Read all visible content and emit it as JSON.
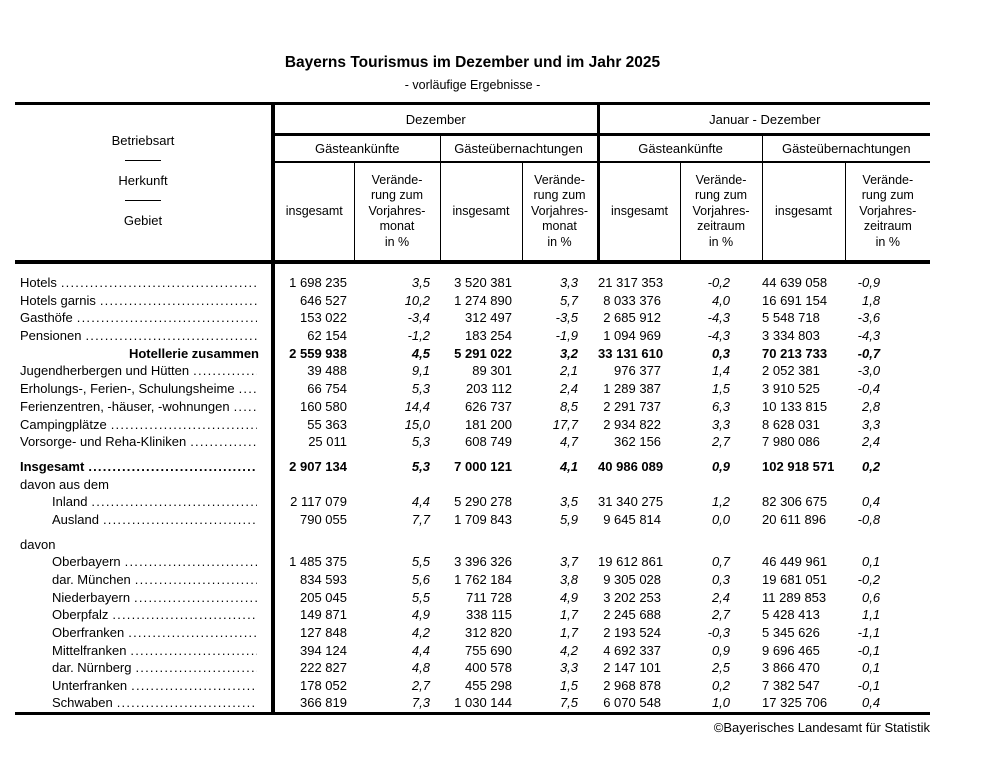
{
  "page": {
    "title": "Bayerns Tourismus im Dezember und im Jahr 2025",
    "subtitle": "- vorläufige Ergebnisse -",
    "footer_credit": "©Bayerisches Landesamt für Statistik"
  },
  "table": {
    "stub": {
      "lines": [
        "Betriebsart",
        "Herkunft",
        "Gebiet"
      ]
    },
    "groups": [
      {
        "label": "Dezember",
        "measures": [
          "Gästeankünfte",
          "Gästeübernachtungen"
        ],
        "total_label": "insgesamt",
        "change_label": "Verände-\nrung zum\nVorjahres-\nmonat\nin %"
      },
      {
        "label": "Januar - Dezember",
        "measures": [
          "Gästeankünfte",
          "Gästeübernachtungen"
        ],
        "total_label": "insgesamt",
        "change_label": "Verände-\nrung zum\nVorjahres-\nzeitraum\nin %"
      }
    ],
    "rows": [
      {
        "label": "Hotels",
        "values": [
          "1 698 235",
          "3,5",
          "3 520 381",
          "3,3",
          "21 317 353",
          "-0,2",
          "44 639 058",
          "-0,9"
        ]
      },
      {
        "label": "Hotels garnis",
        "values": [
          "646 527",
          "10,2",
          "1 274 890",
          "5,7",
          "8 033 376",
          "4,0",
          "16 691 154",
          "1,8"
        ]
      },
      {
        "label": "Gasthöfe",
        "values": [
          "153 022",
          "-3,4",
          "312 497",
          "-3,5",
          "2 685 912",
          "-4,3",
          "5 548 718",
          "-3,6"
        ]
      },
      {
        "label": "Pensionen",
        "values": [
          "62 154",
          "-1,2",
          "183 254",
          "-1,9",
          "1 094 969",
          "-4,3",
          "3 334 803",
          "-4,3"
        ]
      },
      {
        "label": "Hotellerie zusammen",
        "bold": true,
        "align_right": true,
        "values": [
          "2 559 938",
          "4,5",
          "5 291 022",
          "3,2",
          "33 131 610",
          "0,3",
          "70 213 733",
          "-0,7"
        ]
      },
      {
        "label": "Jugendherbergen und Hütten",
        "values": [
          "39 488",
          "9,1",
          "89 301",
          "2,1",
          "976 377",
          "1,4",
          "2 052 381",
          "-3,0"
        ]
      },
      {
        "label": "Erholungs-, Ferien-, Schulungsheime",
        "values": [
          "66 754",
          "5,3",
          "203 112",
          "2,4",
          "1 289 387",
          "1,5",
          "3 910 525",
          "-0,4"
        ]
      },
      {
        "label": "Ferienzentren, -häuser, -wohnungen",
        "values": [
          "160 580",
          "14,4",
          "626 737",
          "8,5",
          "2 291 737",
          "6,3",
          "10 133 815",
          "2,8"
        ]
      },
      {
        "label": "Campingplätze",
        "values": [
          "55 363",
          "15,0",
          "181 200",
          "17,7",
          "2 934 822",
          "3,3",
          "8 628 031",
          "3,3"
        ]
      },
      {
        "label": "Vorsorge- und Reha-Kliniken",
        "values": [
          "25 011",
          "5,3",
          "608 749",
          "4,7",
          "362 156",
          "2,7",
          "7 980 086",
          "2,4"
        ]
      },
      {
        "label": "Insgesamt",
        "bold": true,
        "section_start": true,
        "values": [
          "2 907 134",
          "5,3",
          "7 000 121",
          "4,1",
          "40 986 089",
          "0,9",
          "102 918 571",
          "0,2"
        ]
      },
      {
        "label": "davon aus dem"
      },
      {
        "label": "Inland",
        "indent": true,
        "values": [
          "2 117 079",
          "4,4",
          "5 290 278",
          "3,5",
          "31 340 275",
          "1,2",
          "82 306 675",
          "0,4"
        ]
      },
      {
        "label": "Ausland",
        "indent": true,
        "values": [
          "790 055",
          "7,7",
          "1 709 843",
          "5,9",
          "9 645 814",
          "0,0",
          "20 611 896",
          "-0,8"
        ]
      },
      {
        "label": "davon",
        "section_start": true
      },
      {
        "label": "Oberbayern",
        "indent": true,
        "values": [
          "1 485 375",
          "5,5",
          "3 396 326",
          "3,7",
          "19 612 861",
          "0,7",
          "46 449 961",
          "0,1"
        ]
      },
      {
        "label": "dar. München",
        "indent": true,
        "values": [
          "834 593",
          "5,6",
          "1 762 184",
          "3,8",
          "9 305 028",
          "0,3",
          "19 681 051",
          "-0,2"
        ]
      },
      {
        "label": "Niederbayern",
        "indent": true,
        "values": [
          "205 045",
          "5,5",
          "711 728",
          "4,9",
          "3 202 253",
          "2,4",
          "11 289 853",
          "0,6"
        ]
      },
      {
        "label": "Oberpfalz",
        "indent": true,
        "values": [
          "149 871",
          "4,9",
          "338 115",
          "1,7",
          "2 245 688",
          "2,7",
          "5 428 413",
          "1,1"
        ]
      },
      {
        "label": "Oberfranken",
        "indent": true,
        "values": [
          "127 848",
          "4,2",
          "312 820",
          "1,7",
          "2 193 524",
          "-0,3",
          "5 345 626",
          "-1,1"
        ]
      },
      {
        "label": "Mittelfranken",
        "indent": true,
        "values": [
          "394 124",
          "4,4",
          "755 690",
          "4,2",
          "4 692 337",
          "0,9",
          "9 696 465",
          "-0,1"
        ]
      },
      {
        "label": "dar. Nürnberg",
        "indent": true,
        "values": [
          "222 827",
          "4,8",
          "400 578",
          "3,3",
          "2 147 101",
          "2,5",
          "3 866 470",
          "0,1"
        ]
      },
      {
        "label": "Unterfranken",
        "indent": true,
        "values": [
          "178 052",
          "2,7",
          "455 298",
          "1,5",
          "2 968 878",
          "0,2",
          "7 382 547",
          "-0,1"
        ]
      },
      {
        "label": "Schwaben",
        "indent": true,
        "values": [
          "366 819",
          "7,3",
          "1 030 144",
          "7,5",
          "6 070 548",
          "1,0",
          "17 325 706",
          "0,4"
        ]
      }
    ]
  }
}
